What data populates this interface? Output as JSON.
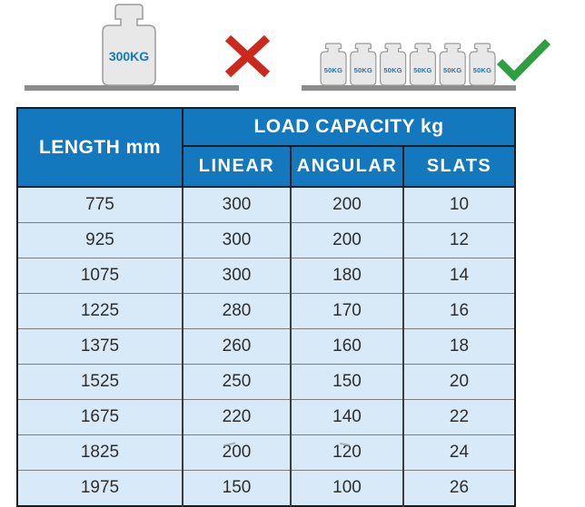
{
  "illustration": {
    "wrong_weight_label": "300KG",
    "right_weight_labels": [
      "50KG",
      "50KG",
      "50KG",
      "50KG",
      "50KG",
      "50KG"
    ],
    "wrong_icon": "red-cross",
    "right_icon": "green-checkmark",
    "colors": {
      "cross_red": "#cc281e",
      "check_green": "#2f9e41",
      "weight_fill": "#e8e8e8",
      "weight_outline": "#9a9a9a",
      "shelf_gray": "#8c8c8c",
      "weight_label_blue": "#1478be"
    }
  },
  "chart_data": {
    "type": "table",
    "title": "",
    "length_header": "LENGTH mm",
    "group_header": "LOAD CAPACITY kg",
    "sub_headers": [
      "LINEAR",
      "ANGULAR",
      "SLATS"
    ],
    "columns": [
      "LENGTH mm",
      "LINEAR",
      "ANGULAR",
      "SLATS"
    ],
    "rows": [
      [
        775,
        300,
        200,
        10
      ],
      [
        925,
        300,
        200,
        12
      ],
      [
        1075,
        300,
        180,
        14
      ],
      [
        1225,
        280,
        170,
        16
      ],
      [
        1375,
        260,
        160,
        18
      ],
      [
        1525,
        250,
        150,
        20
      ],
      [
        1675,
        220,
        140,
        22
      ],
      [
        1825,
        200,
        120,
        24
      ],
      [
        1975,
        150,
        100,
        26
      ]
    ],
    "layout": {
      "header_bg": "#1478be",
      "header_text_color": "#ffffff",
      "row_bg": "#d8eaf8",
      "grid": true
    }
  }
}
